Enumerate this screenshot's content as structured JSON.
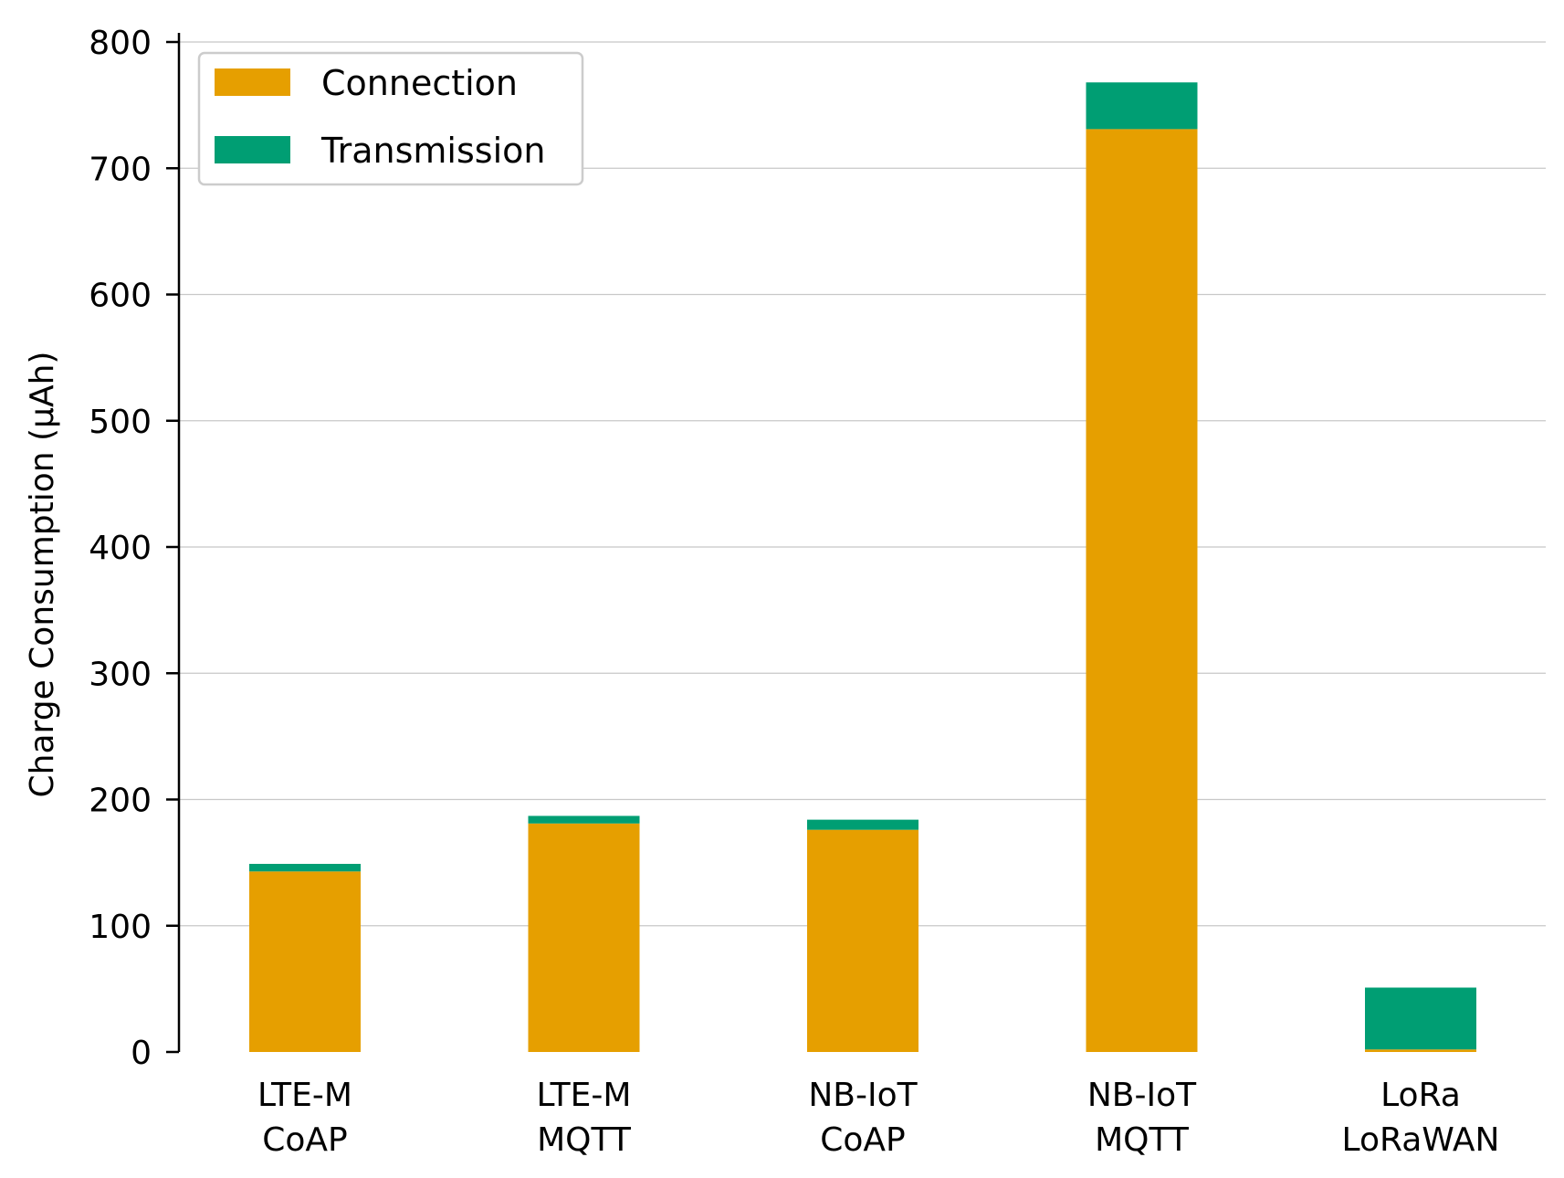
{
  "chart_data": {
    "type": "bar",
    "stacked": true,
    "title": "",
    "xlabel": "",
    "ylabel": "Charge Consumption (µAh)",
    "ylim": [
      0,
      800
    ],
    "yticks": [
      0,
      100,
      200,
      300,
      400,
      500,
      600,
      700,
      800
    ],
    "grid": "horizontal",
    "legend_position": "top-left",
    "categories": [
      [
        "LTE-M",
        "CoAP"
      ],
      [
        "LTE-M",
        "MQTT"
      ],
      [
        "NB-IoT",
        "CoAP"
      ],
      [
        "NB-IoT",
        "MQTT"
      ],
      [
        "LoRa",
        "LoRaWAN"
      ]
    ],
    "series": [
      {
        "name": "Connection",
        "color": "#E69F00",
        "values": [
          143,
          181,
          176,
          731,
          2
        ]
      },
      {
        "name": "Transmission",
        "color": "#009E73",
        "values": [
          6,
          6,
          8,
          37,
          49
        ]
      }
    ]
  }
}
